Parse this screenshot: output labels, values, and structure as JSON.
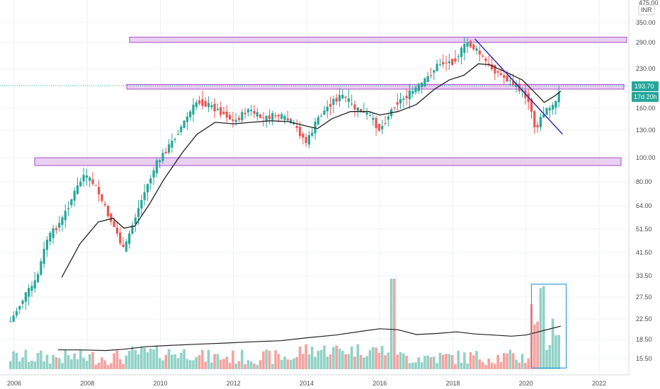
{
  "currency": "INR",
  "top_clip_label": "475.00",
  "price_tag": "193.70",
  "countdown_tag": "17d 20h",
  "colors": {
    "up": "#26a69a",
    "down": "#ef5350",
    "vol_up": "#91d2c6",
    "vol_down": "#f5a29f",
    "ma": "#222222",
    "trendline": "#2020c0",
    "zone_fill": "#e6c8f0",
    "zone_stroke": "#9b30c8",
    "highlight_box": "#3a9ad9",
    "grid": "#eef0f3",
    "price_line": "#26a69a"
  },
  "chart_data": {
    "type": "candlestick",
    "title": "",
    "y_axis": {
      "scale": "log",
      "ticks": [
        "350.00",
        "290.00",
        "230.00",
        "160.00",
        "130.00",
        "100.00",
        "80.00",
        "64.00",
        "51.50",
        "41.50",
        "33.50",
        "27.50",
        "22.50",
        "18.50",
        "15.50"
      ]
    },
    "x_axis": {
      "range": [
        2005.8,
        2022.8
      ],
      "ticks": [
        "2006",
        "2008",
        "2010",
        "2012",
        "2014",
        "2016",
        "2018",
        "2020",
        "2022"
      ]
    },
    "price_path": [
      [
        2005.9,
        22
      ],
      [
        2006.3,
        28
      ],
      [
        2006.6,
        32
      ],
      [
        2006.9,
        47
      ],
      [
        2007.3,
        56
      ],
      [
        2007.6,
        70
      ],
      [
        2007.9,
        85
      ],
      [
        2008.2,
        78
      ],
      [
        2008.5,
        62
      ],
      [
        2008.8,
        50
      ],
      [
        2009.0,
        42
      ],
      [
        2009.2,
        52
      ],
      [
        2009.6,
        75
      ],
      [
        2009.9,
        95
      ],
      [
        2010.3,
        115
      ],
      [
        2010.7,
        145
      ],
      [
        2011.0,
        170
      ],
      [
        2011.4,
        162
      ],
      [
        2011.8,
        150
      ],
      [
        2012.0,
        140
      ],
      [
        2012.4,
        158
      ],
      [
        2012.8,
        145
      ],
      [
        2013.2,
        150
      ],
      [
        2013.6,
        140
      ],
      [
        2014.0,
        115
      ],
      [
        2014.3,
        145
      ],
      [
        2014.7,
        170
      ],
      [
        2015.0,
        178
      ],
      [
        2015.3,
        160
      ],
      [
        2015.7,
        150
      ],
      [
        2016.0,
        130
      ],
      [
        2016.4,
        165
      ],
      [
        2016.8,
        180
      ],
      [
        2017.2,
        200
      ],
      [
        2017.6,
        240
      ],
      [
        2018.0,
        245
      ],
      [
        2018.4,
        290
      ],
      [
        2018.7,
        265
      ],
      [
        2019.0,
        235
      ],
      [
        2019.4,
        210
      ],
      [
        2019.8,
        190
      ],
      [
        2020.1,
        170
      ],
      [
        2020.25,
        130
      ],
      [
        2020.5,
        155
      ],
      [
        2020.8,
        165
      ],
      [
        2020.95,
        193.7
      ]
    ],
    "moving_average": [
      [
        2007.3,
        33
      ],
      [
        2007.8,
        45
      ],
      [
        2008.3,
        55
      ],
      [
        2008.7,
        57
      ],
      [
        2009.0,
        52
      ],
      [
        2009.3,
        53
      ],
      [
        2009.7,
        65
      ],
      [
        2010.1,
        82
      ],
      [
        2010.6,
        105
      ],
      [
        2011.0,
        125
      ],
      [
        2011.5,
        140
      ],
      [
        2012.0,
        138
      ],
      [
        2012.5,
        140
      ],
      [
        2013.0,
        142
      ],
      [
        2013.5,
        141
      ],
      [
        2014.0,
        135
      ],
      [
        2014.3,
        132
      ],
      [
        2014.7,
        145
      ],
      [
        2015.2,
        155
      ],
      [
        2015.7,
        155
      ],
      [
        2016.0,
        150
      ],
      [
        2016.5,
        155
      ],
      [
        2017.0,
        165
      ],
      [
        2017.5,
        188
      ],
      [
        2017.9,
        205
      ],
      [
        2018.3,
        215
      ],
      [
        2018.7,
        240
      ],
      [
        2019.0,
        238
      ],
      [
        2019.5,
        220
      ],
      [
        2019.9,
        205
      ],
      [
        2020.2,
        185
      ],
      [
        2020.5,
        168
      ],
      [
        2020.8,
        178
      ],
      [
        2020.95,
        185
      ]
    ],
    "volume_ma": [
      [
        2007.2,
        16.8
      ],
      [
        2007.8,
        16.8
      ],
      [
        2008.5,
        16.7
      ],
      [
        2009.0,
        16.9
      ],
      [
        2009.6,
        17.3
      ],
      [
        2010.2,
        17.5
      ],
      [
        2011.0,
        17.7
      ],
      [
        2011.8,
        17.9
      ],
      [
        2012.5,
        18.1
      ],
      [
        2013.3,
        18.3
      ],
      [
        2014.0,
        18.8
      ],
      [
        2014.8,
        19.3
      ],
      [
        2015.5,
        20.0
      ],
      [
        2016.0,
        20.5
      ],
      [
        2016.5,
        20.3
      ],
      [
        2017.0,
        19.4
      ],
      [
        2017.6,
        19.6
      ],
      [
        2018.1,
        19.9
      ],
      [
        2018.6,
        19.5
      ],
      [
        2019.1,
        19.3
      ],
      [
        2019.6,
        19.1
      ],
      [
        2020.0,
        19.3
      ],
      [
        2020.5,
        20.2
      ],
      [
        2020.95,
        21.0
      ]
    ],
    "zones": [
      {
        "low": 290,
        "high": 305
      },
      {
        "low": 188,
        "high": 196
      },
      {
        "low": 93,
        "high": 100
      }
    ],
    "trendline": {
      "from": [
        2018.6,
        300
      ],
      "to": [
        2021.0,
        125
      ]
    },
    "highlight_box": {
      "x_from": 2020.15,
      "x_to": 2021.1,
      "y_from": 14.2,
      "y_to": 31.0
    }
  }
}
